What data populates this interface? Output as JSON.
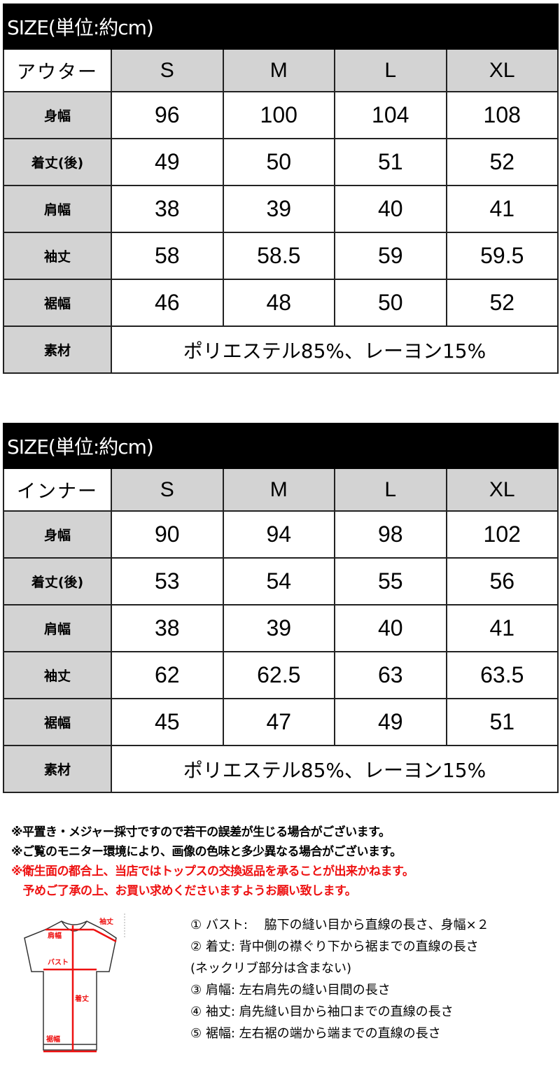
{
  "tables": [
    {
      "title": "SIZE(単位:約cm)",
      "corner": "アウター",
      "sizes": [
        "S",
        "M",
        "L",
        "XL"
      ],
      "rows": [
        {
          "label": "身幅",
          "values": [
            "96",
            "100",
            "104",
            "108"
          ]
        },
        {
          "label": "着丈(後)",
          "values": [
            "49",
            "50",
            "51",
            "52"
          ]
        },
        {
          "label": "肩幅",
          "values": [
            "38",
            "39",
            "40",
            "41"
          ]
        },
        {
          "label": "袖丈",
          "values": [
            "58",
            "58.5",
            "59",
            "59.5"
          ]
        },
        {
          "label": "裾幅",
          "values": [
            "46",
            "48",
            "50",
            "52"
          ]
        }
      ],
      "material_label": "素材",
      "material": "ポリエステル85%、レーヨン15%"
    },
    {
      "title": "SIZE(単位:約cm)",
      "corner": "インナー",
      "sizes": [
        "S",
        "M",
        "L",
        "XL"
      ],
      "rows": [
        {
          "label": "身幅",
          "values": [
            "90",
            "94",
            "98",
            "102"
          ]
        },
        {
          "label": "着丈(後)",
          "values": [
            "53",
            "54",
            "55",
            "56"
          ]
        },
        {
          "label": "肩幅",
          "values": [
            "38",
            "39",
            "40",
            "41"
          ]
        },
        {
          "label": "袖丈",
          "values": [
            "62",
            "62.5",
            "63",
            "63.5"
          ]
        },
        {
          "label": "裾幅",
          "values": [
            "45",
            "47",
            "49",
            "51"
          ]
        }
      ],
      "material_label": "素材",
      "material": "ポリエステル85%、レーヨン15%"
    }
  ],
  "notes": [
    {
      "text": "※平置き・メジャー採寸ですので若干の誤差が生じる場合がございます。",
      "color": "#111111"
    },
    {
      "text": "※ご覧のモニター環境により、画像の色味と多少異なる場合がございます。",
      "color": "#111111"
    },
    {
      "text": "※衛生面の都合上、当店ではトップスの交換返品を承ることが出来かねます。",
      "color": "#ee1111"
    },
    {
      "text": "　予めご了承の上、お買い求めくださいますようお願い致します。",
      "color": "#ee1111"
    }
  ],
  "diagram": {
    "labels": {
      "sleeve": "袖丈",
      "shoulder": "肩幅",
      "bust": "バスト",
      "length": "着丈",
      "hem": "裾幅"
    }
  },
  "definitions": [
    "① バスト:　 脇下の縫い目から直線の長さ、身幅×２",
    "② 着丈:  背中側の襟ぐり下から裾までの直線の長さ",
    "(ネックリブ部分は含まない)",
    "③ 肩幅:  左右肩先の縫い目間の長さ",
    "④ 袖丈:  肩先縫い目から袖口までの直線の長さ",
    "⑤ 裾幅:  左右裾の端から端までの直線の長さ"
  ]
}
